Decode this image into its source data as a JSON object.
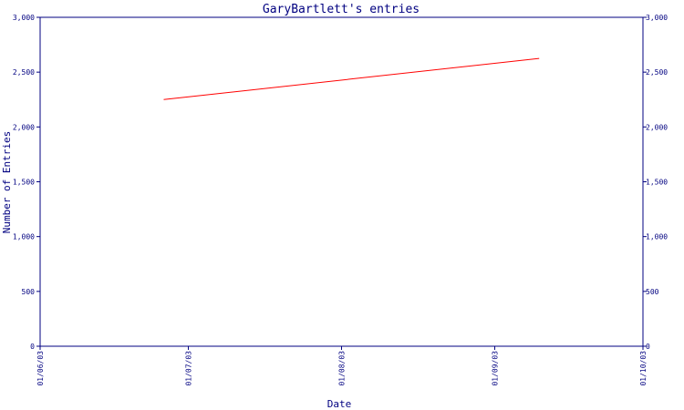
{
  "chart_data": {
    "type": "line",
    "title": "GaryBartlett's entries",
    "xlabel": "Date",
    "ylabel": "Number of Entries",
    "x_ticks": [
      "01/06/03",
      "01/07/03",
      "01/08/03",
      "01/09/03",
      "01/10/03"
    ],
    "y_ticks": [
      "0",
      "500",
      "1,000",
      "1,500",
      "2,000",
      "2,500",
      "3,000"
    ],
    "ylim": [
      0,
      3000
    ],
    "xlim": [
      "2003-06-01",
      "2003-10-01"
    ],
    "grid": false,
    "series": [
      {
        "color": "#ff0000",
        "points": [
          {
            "x": "2003-06-26",
            "y": 2250
          },
          {
            "x": "2003-09-10",
            "y": 2625
          }
        ]
      }
    ]
  },
  "colors": {
    "axis": "#000080",
    "line": "#ff0000",
    "background": "#ffffff"
  }
}
